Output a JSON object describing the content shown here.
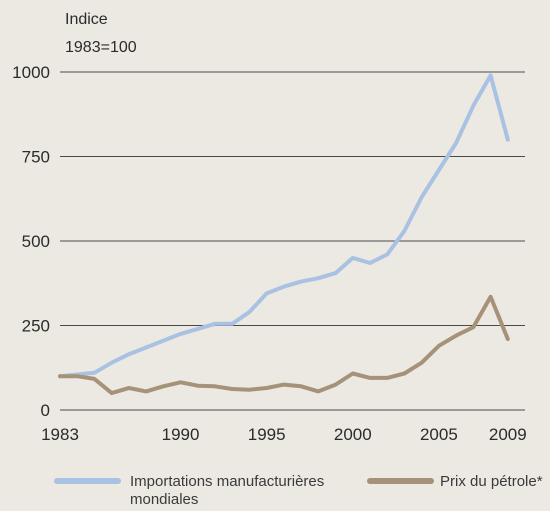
{
  "chart_data": {
    "type": "line",
    "ylabel_line1": "Indice",
    "ylabel_line2": "1983=100",
    "yticks": [
      0,
      250,
      500,
      750,
      1000
    ],
    "xticks": [
      1983,
      1990,
      1995,
      2000,
      2005,
      2009
    ],
    "ylim": [
      0,
      1000
    ],
    "xlim": [
      1983,
      2010
    ],
    "grid": true,
    "legend_position": "bottom",
    "series": [
      {
        "name": "Importations manufacturières mondiales",
        "color": "#a9c1e2",
        "x": [
          1983,
          1984,
          1985,
          1986,
          1987,
          1988,
          1989,
          1990,
          1991,
          1992,
          1993,
          1994,
          1995,
          1996,
          1997,
          1998,
          1999,
          2000,
          2001,
          2002,
          2003,
          2004,
          2005,
          2006,
          2007,
          2008,
          2009
        ],
        "values": [
          100,
          105,
          110,
          140,
          165,
          185,
          205,
          225,
          240,
          255,
          255,
          290,
          345,
          365,
          380,
          390,
          405,
          450,
          435,
          460,
          530,
          630,
          710,
          790,
          900,
          990,
          800
        ]
      },
      {
        "name": "Prix du pétrole*",
        "color": "#a69278",
        "x": [
          1983,
          1984,
          1985,
          1986,
          1987,
          1988,
          1989,
          1990,
          1991,
          1992,
          1993,
          1994,
          1995,
          1996,
          1997,
          1998,
          1999,
          2000,
          2001,
          2002,
          2003,
          2004,
          2005,
          2006,
          2007,
          2008,
          2009
        ],
        "values": [
          100,
          100,
          92,
          50,
          65,
          55,
          70,
          82,
          72,
          70,
          62,
          60,
          65,
          75,
          70,
          55,
          75,
          108,
          95,
          95,
          108,
          140,
          190,
          220,
          245,
          335,
          210
        ]
      }
    ]
  }
}
